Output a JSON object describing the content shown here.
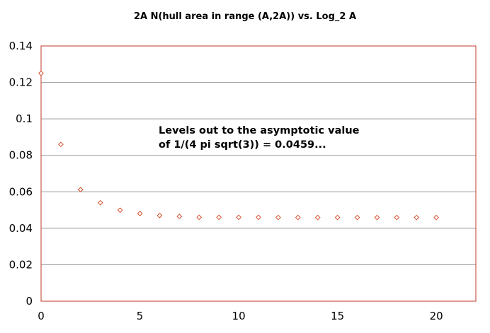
{
  "chart_data": {
    "type": "scatter",
    "title": "2A N(hull area in range (A,2A))  vs.  Log_2 A",
    "xlabel": "",
    "ylabel": "",
    "xlim": [
      0,
      22
    ],
    "ylim": [
      0,
      0.14
    ],
    "x_ticks": [
      0,
      5,
      10,
      15,
      20
    ],
    "x_tick_labels": [
      "0",
      "5",
      "10",
      "15",
      "20"
    ],
    "y_ticks": [
      0,
      0.02,
      0.04,
      0.06,
      0.08,
      0.1,
      0.12,
      0.14
    ],
    "y_tick_labels": [
      "0",
      "0.02",
      "0.04",
      "0.06",
      "0.08",
      "0.1",
      "0.12",
      "0.14"
    ],
    "grid": "horizontal",
    "legend": "none",
    "marker": "diamond-open",
    "marker_color": "#d9502e",
    "plot_border_color": "#c0392b",
    "gridline_color": "#999999",
    "annotation_lines": [
      "Levels out to the asymptotic value",
      "of 1/(4 pi sqrt(3)) = 0.0459..."
    ],
    "series": [
      {
        "x": [
          0,
          1,
          2,
          3,
          4,
          5,
          6,
          7,
          8,
          9,
          10,
          11,
          12,
          13,
          14,
          15,
          16,
          17,
          18,
          19,
          20
        ],
        "y": [
          0.125,
          0.086,
          0.0612,
          0.054,
          0.0499,
          0.0481,
          0.047,
          0.0465,
          0.046,
          0.046,
          0.046,
          0.046,
          0.0459,
          0.0459,
          0.0459,
          0.0459,
          0.0459,
          0.0459,
          0.0459,
          0.0459,
          0.0459
        ]
      }
    ]
  }
}
